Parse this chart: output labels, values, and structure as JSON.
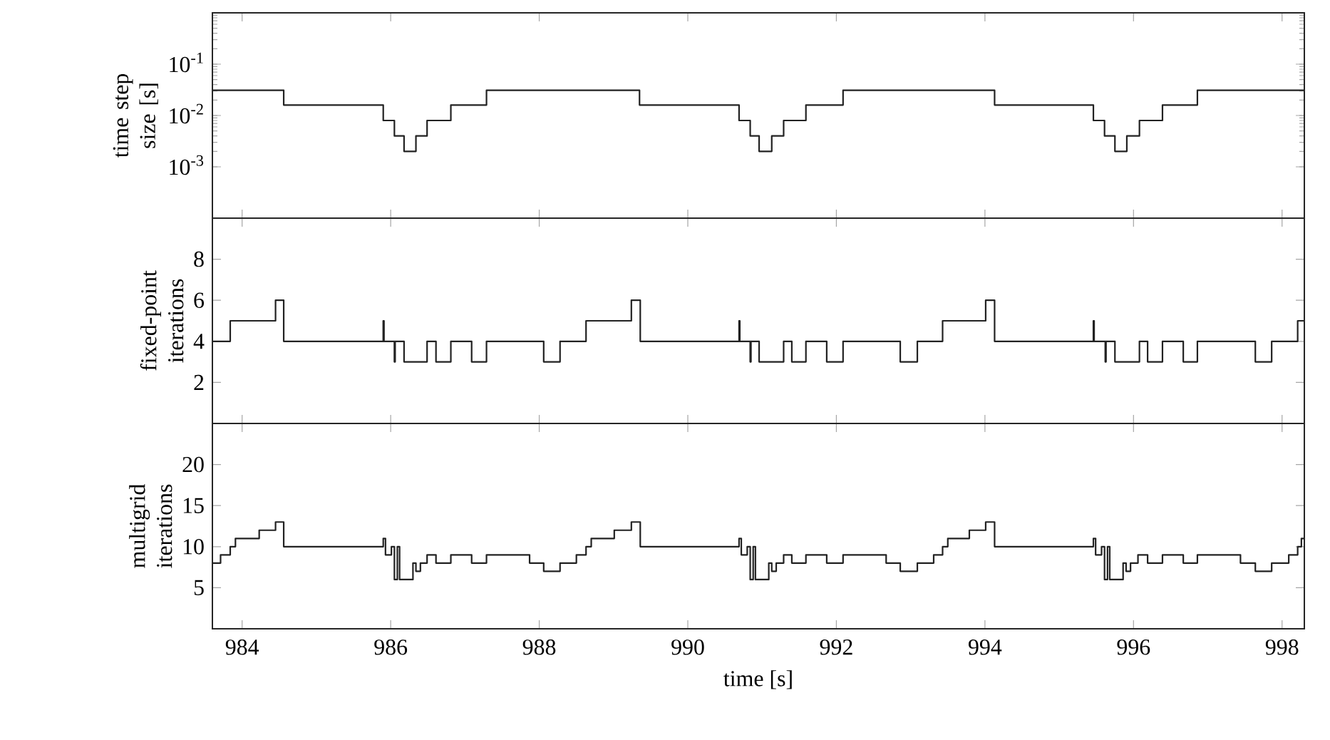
{
  "chart_data": [
    {
      "type": "step",
      "ylabel": "time step size [s]",
      "log": "y",
      "tick_labels": "y",
      "x": [
        983.6,
        984.56,
        985.9,
        986.05,
        986.18,
        986.34,
        986.49,
        986.81,
        987.29,
        989.35,
        990.69,
        990.84,
        990.96,
        991.13,
        991.29,
        991.59,
        992.09,
        994.13,
        995.46,
        995.61,
        995.75,
        995.91,
        996.08,
        996.39,
        996.86,
        998.3
      ],
      "series": [
        {
          "color": "#222222",
          "values": [
            0.031,
            0.016,
            0.008,
            0.004,
            0.002,
            0.004,
            0.008,
            0.016,
            0.031,
            0.016,
            0.008,
            0.004,
            0.002,
            0.004,
            0.008,
            0.016,
            0.031,
            0.016,
            0.008,
            0.004,
            0.002,
            0.004,
            0.008,
            0.016,
            0.031,
            0.031
          ]
        }
      ],
      "xlim": [
        983.6,
        998.3
      ],
      "xticks": [
        984,
        986,
        988,
        990,
        992,
        994,
        996,
        998
      ],
      "ylim": [
        0.0001,
        1
      ],
      "yticks": [
        {
          "value": 0.001,
          "label": "10$^{-3}$"
        },
        {
          "value": 0.01,
          "label": "10$^{-2}$"
        },
        {
          "value": 0.1,
          "label": "10$^{-1}$"
        },
        {
          "value": 1,
          "label": null
        }
      ]
    },
    {
      "type": "step",
      "ylabel": "fixed-point iterations",
      "tick_labels": "y",
      "x": [
        983.6,
        983.84,
        984.45,
        984.56,
        985.9,
        985.91,
        986.05,
        986.06,
        986.18,
        986.49,
        986.61,
        986.81,
        987.09,
        987.29,
        988.06,
        988.28,
        988.63,
        989.24,
        989.36,
        990.69,
        990.7,
        990.84,
        990.85,
        990.96,
        991.29,
        991.4,
        991.59,
        991.87,
        992.09,
        992.86,
        993.09,
        993.43,
        994.01,
        994.13,
        995.46,
        995.47,
        995.62,
        995.63,
        995.75,
        996.08,
        996.19,
        996.39,
        996.67,
        996.86,
        997.64,
        997.86,
        998.21,
        998.3
      ],
      "series": [
        {
          "color": "#222222",
          "values": [
            4,
            5,
            6,
            4,
            5,
            4,
            3,
            4,
            3,
            4,
            3,
            4,
            3,
            4,
            3,
            4,
            5,
            6,
            4,
            5,
            4,
            3,
            4,
            3,
            4,
            3,
            4,
            3,
            4,
            3,
            4,
            5,
            6,
            4,
            5,
            4,
            3,
            4,
            3,
            4,
            3,
            4,
            3,
            4,
            3,
            4,
            5,
            5
          ]
        }
      ],
      "xlim": [
        983.6,
        998.3
      ],
      "xticks": [
        984,
        986,
        988,
        990,
        992,
        994,
        996,
        998
      ],
      "ylim": [
        0,
        10
      ],
      "yticks": [
        2,
        4,
        6,
        8
      ]
    },
    {
      "type": "step",
      "ylabel": "multigrid iterations",
      "xlabel": "time [s]",
      "x": [
        983.6,
        983.71,
        983.84,
        983.91,
        984.23,
        984.45,
        984.56,
        985.9,
        985.93,
        986.01,
        986.05,
        986.09,
        986.12,
        986.3,
        986.34,
        986.4,
        986.49,
        986.61,
        986.81,
        987.09,
        987.29,
        987.87,
        988.06,
        988.28,
        988.5,
        988.63,
        988.7,
        989.01,
        989.24,
        989.36,
        990.69,
        990.72,
        990.8,
        990.84,
        990.88,
        990.91,
        991.09,
        991.13,
        991.19,
        991.29,
        991.4,
        991.59,
        991.87,
        992.09,
        992.67,
        992.86,
        993.09,
        993.31,
        993.43,
        993.5,
        993.79,
        994.01,
        994.13,
        995.46,
        995.49,
        995.57,
        995.61,
        995.65,
        995.68,
        995.86,
        995.9,
        995.96,
        996.06,
        996.19,
        996.39,
        996.67,
        996.86,
        997.44,
        997.64,
        997.86,
        998.09,
        998.21,
        998.26,
        998.3
      ],
      "series": [
        {
          "color": "#222222",
          "values": [
            8,
            9,
            10,
            11,
            12,
            13,
            10,
            11,
            9,
            10,
            6,
            10,
            6,
            8,
            7,
            8,
            9,
            8,
            9,
            8,
            9,
            8,
            7,
            8,
            9,
            10,
            11,
            12,
            13,
            10,
            11,
            9,
            10,
            6,
            10,
            6,
            8,
            7,
            8,
            9,
            8,
            9,
            8,
            9,
            8,
            7,
            8,
            9,
            10,
            11,
            12,
            13,
            10,
            11,
            9,
            10,
            6,
            10,
            6,
            8,
            7,
            8,
            9,
            8,
            9,
            8,
            9,
            8,
            7,
            8,
            9,
            10,
            11,
            11
          ]
        }
      ],
      "xlim": [
        983.6,
        998.3
      ],
      "xticks": [
        984,
        986,
        988,
        990,
        992,
        994,
        996,
        998
      ],
      "ylim": [
        0,
        25
      ],
      "yticks": [
        5,
        10,
        15,
        20
      ]
    }
  ]
}
